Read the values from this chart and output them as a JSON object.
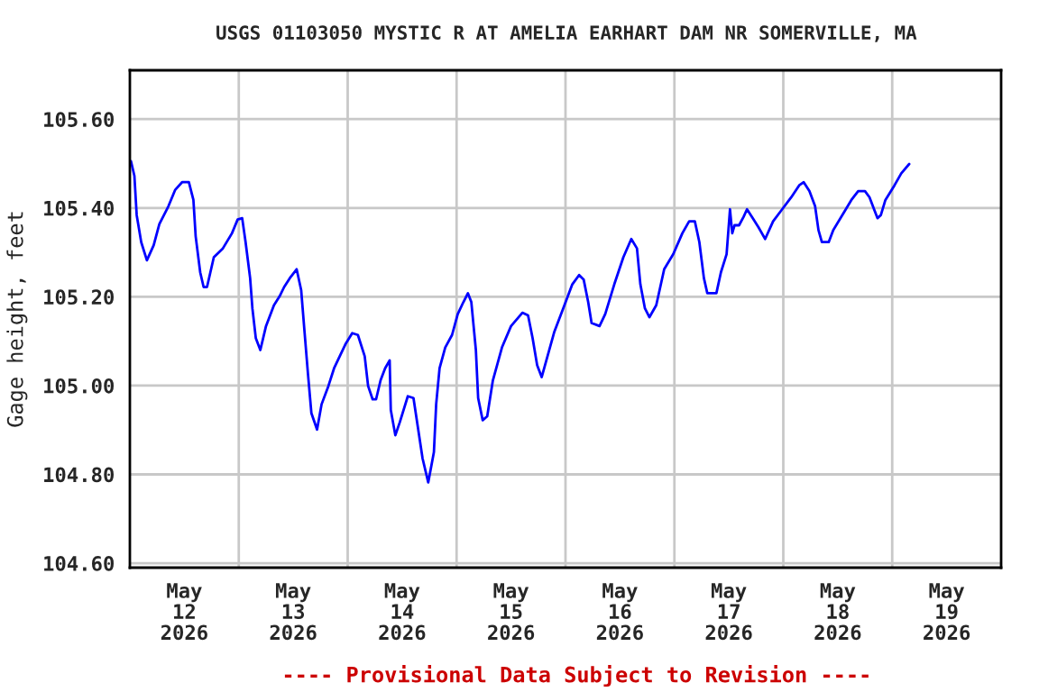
{
  "chart_data": {
    "type": "line",
    "title": "USGS 01103050 MYSTIC R AT AMELIA EARHART DAM NR SOMERVILLE, MA",
    "ylabel": "Gage height, feet",
    "annotations": [
      "---- Provisional Data Subject to Revision ----"
    ],
    "xlim": [
      "2026-05-12",
      "2026-05-20"
    ],
    "xticks": [
      {
        "value": "2026-05-12T12:00",
        "label": "May\n12\n2026"
      },
      {
        "value": "2026-05-13",
        "label": null
      },
      {
        "value": "2026-05-13T12:00",
        "label": "May\n13\n2026"
      },
      {
        "value": "2026-05-14",
        "label": null
      },
      {
        "value": "2026-05-14T12:00",
        "label": "May\n14\n2026"
      },
      {
        "value": "2026-05-15",
        "label": null
      },
      {
        "value": "2026-05-15T12:00",
        "label": "May\n15\n2026"
      },
      {
        "value": "2026-05-16",
        "label": null
      },
      {
        "value": "2026-05-16T12:00",
        "label": "May\n16\n2026"
      },
      {
        "value": "2026-05-17",
        "label": null
      },
      {
        "value": "2026-05-17T12:00",
        "label": "May\n17\n2026"
      },
      {
        "value": "2026-05-18",
        "label": null
      },
      {
        "value": "2026-05-18T12:00",
        "label": "May\n18\n2026"
      },
      {
        "value": "2026-05-19",
        "label": null
      },
      {
        "value": "2026-05-19T12:00",
        "label": "May\n19\n2026"
      }
    ],
    "ylim": [
      104.59,
      105.71
    ],
    "yticks": [
      {
        "value": 104.6,
        "label": "104.60"
      },
      {
        "value": 104.8,
        "label": "104.80"
      },
      {
        "value": 105.0,
        "label": "105.00"
      },
      {
        "value": 105.2,
        "label": "105.20"
      },
      {
        "value": 105.4,
        "label": "105.40"
      },
      {
        "value": 105.6,
        "label": "105.60"
      }
    ],
    "grid": true,
    "legend": false,
    "marker": "none",
    "line_style": "solid",
    "series": [
      {
        "color": "#0000ff",
        "x": [
          "2026-05-12T00:15",
          "2026-05-12T01:00",
          "2026-05-12T01:30",
          "2026-05-12T02:30",
          "2026-05-12T03:45",
          "2026-05-12T05:15",
          "2026-05-12T06:30",
          "2026-05-12T08:30",
          "2026-05-12T10:00",
          "2026-05-12T11:30",
          "2026-05-12T13:00",
          "2026-05-12T14:00",
          "2026-05-12T14:30",
          "2026-05-12T15:30",
          "2026-05-12T16:15",
          "2026-05-12T17:00",
          "2026-05-12T18:30",
          "2026-05-12T20:30",
          "2026-05-12T22:30",
          "2026-05-12T23:45",
          "2026-05-13T00:45",
          "2026-05-13T01:30",
          "2026-05-13T02:30",
          "2026-05-13T03:00",
          "2026-05-13T03:45",
          "2026-05-13T04:45",
          "2026-05-13T06:00",
          "2026-05-13T07:45",
          "2026-05-13T09:00",
          "2026-05-13T10:00",
          "2026-05-13T11:15",
          "2026-05-13T12:45",
          "2026-05-13T13:45",
          "2026-05-13T14:30",
          "2026-05-13T15:15",
          "2026-05-13T16:00",
          "2026-05-13T17:15",
          "2026-05-13T18:15",
          "2026-05-13T19:45",
          "2026-05-13T21:00",
          "2026-05-13T22:15",
          "2026-05-13T23:30",
          "2026-05-14T01:00",
          "2026-05-14T02:15",
          "2026-05-14T03:45",
          "2026-05-14T04:30",
          "2026-05-14T05:30",
          "2026-05-14T06:15",
          "2026-05-14T07:15",
          "2026-05-14T08:15",
          "2026-05-14T09:15",
          "2026-05-14T09:30",
          "2026-05-14T10:30",
          "2026-05-14T11:30",
          "2026-05-14T13:15",
          "2026-05-14T14:30",
          "2026-05-14T15:30",
          "2026-05-14T16:30",
          "2026-05-14T17:45",
          "2026-05-14T19:00",
          "2026-05-14T19:30",
          "2026-05-14T20:15",
          "2026-05-14T21:30",
          "2026-05-14T23:00",
          "2026-05-15T00:15",
          "2026-05-15T01:30",
          "2026-05-15T02:30",
          "2026-05-15T03:15",
          "2026-05-15T04:15",
          "2026-05-15T04:45",
          "2026-05-15T05:45",
          "2026-05-15T06:45",
          "2026-05-15T08:00",
          "2026-05-15T10:00",
          "2026-05-15T12:00",
          "2026-05-15T14:30",
          "2026-05-15T15:45",
          "2026-05-15T16:45",
          "2026-05-15T17:45",
          "2026-05-15T18:45",
          "2026-05-15T21:30",
          "2026-05-15T23:30",
          "2026-05-16T01:30",
          "2026-05-16T03:00",
          "2026-05-16T04:00",
          "2026-05-16T05:00",
          "2026-05-16T05:45",
          "2026-05-16T07:30",
          "2026-05-16T08:45",
          "2026-05-16T10:45",
          "2026-05-16T12:45",
          "2026-05-16T14:30",
          "2026-05-16T15:45",
          "2026-05-16T16:30",
          "2026-05-16T17:30",
          "2026-05-16T18:30",
          "2026-05-16T20:00",
          "2026-05-16T21:45",
          "2026-05-16T23:45",
          "2026-05-17T01:45",
          "2026-05-17T03:15",
          "2026-05-17T04:30",
          "2026-05-17T05:30",
          "2026-05-17T06:30",
          "2026-05-17T07:15",
          "2026-05-17T09:15",
          "2026-05-17T10:15",
          "2026-05-17T11:30",
          "2026-05-17T12:15",
          "2026-05-17T12:45",
          "2026-05-17T13:15",
          "2026-05-17T14:15",
          "2026-05-17T15:15",
          "2026-05-17T16:00",
          "2026-05-17T17:15",
          "2026-05-17T18:30",
          "2026-05-17T20:00",
          "2026-05-17T21:45",
          "2026-05-17T23:45",
          "2026-05-18T01:45",
          "2026-05-18T03:30",
          "2026-05-18T04:30",
          "2026-05-18T05:45",
          "2026-05-18T07:00",
          "2026-05-18T07:45",
          "2026-05-18T08:30",
          "2026-05-18T10:00",
          "2026-05-18T11:00",
          "2026-05-18T13:00",
          "2026-05-18T15:00",
          "2026-05-18T16:30",
          "2026-05-18T18:00",
          "2026-05-18T19:00",
          "2026-05-18T20:00",
          "2026-05-18T20:45",
          "2026-05-18T21:30",
          "2026-05-18T22:30",
          "2026-05-19T00:30",
          "2026-05-19T02:00",
          "2026-05-19T03:45"
        ],
        "values": [
          105.505,
          105.472,
          105.384,
          105.323,
          105.282,
          105.316,
          105.364,
          105.404,
          105.441,
          105.458,
          105.458,
          105.418,
          105.336,
          105.255,
          105.222,
          105.222,
          105.289,
          105.309,
          105.343,
          105.374,
          105.377,
          105.323,
          105.242,
          105.174,
          105.107,
          105.08,
          105.134,
          105.181,
          105.201,
          105.222,
          105.242,
          105.262,
          105.215,
          105.12,
          105.026,
          104.938,
          104.901,
          104.958,
          104.999,
          105.039,
          105.066,
          105.093,
          105.118,
          105.114,
          105.066,
          104.999,
          104.969,
          104.969,
          105.012,
          105.039,
          105.057,
          104.945,
          104.888,
          104.918,
          104.976,
          104.972,
          104.904,
          104.836,
          104.782,
          104.85,
          104.958,
          105.039,
          105.086,
          105.114,
          105.161,
          105.188,
          105.208,
          105.188,
          105.08,
          104.972,
          104.922,
          104.931,
          105.012,
          105.086,
          105.134,
          105.164,
          105.158,
          105.107,
          105.046,
          105.019,
          105.12,
          105.174,
          105.228,
          105.249,
          105.239,
          105.188,
          105.141,
          105.134,
          105.161,
          105.228,
          105.289,
          105.33,
          105.309,
          105.228,
          105.174,
          105.154,
          105.181,
          105.262,
          105.296,
          105.343,
          105.37,
          105.37,
          105.323,
          105.242,
          105.208,
          105.208,
          105.255,
          105.296,
          105.397,
          105.343,
          105.361,
          105.361,
          105.38,
          105.397,
          105.377,
          105.357,
          105.33,
          105.37,
          105.397,
          105.424,
          105.451,
          105.458,
          105.438,
          105.404,
          105.35,
          105.323,
          105.323,
          105.35,
          105.384,
          105.418,
          105.438,
          105.438,
          105.424,
          105.397,
          105.377,
          105.384,
          105.418,
          105.451,
          105.478,
          105.499
        ]
      }
    ]
  }
}
